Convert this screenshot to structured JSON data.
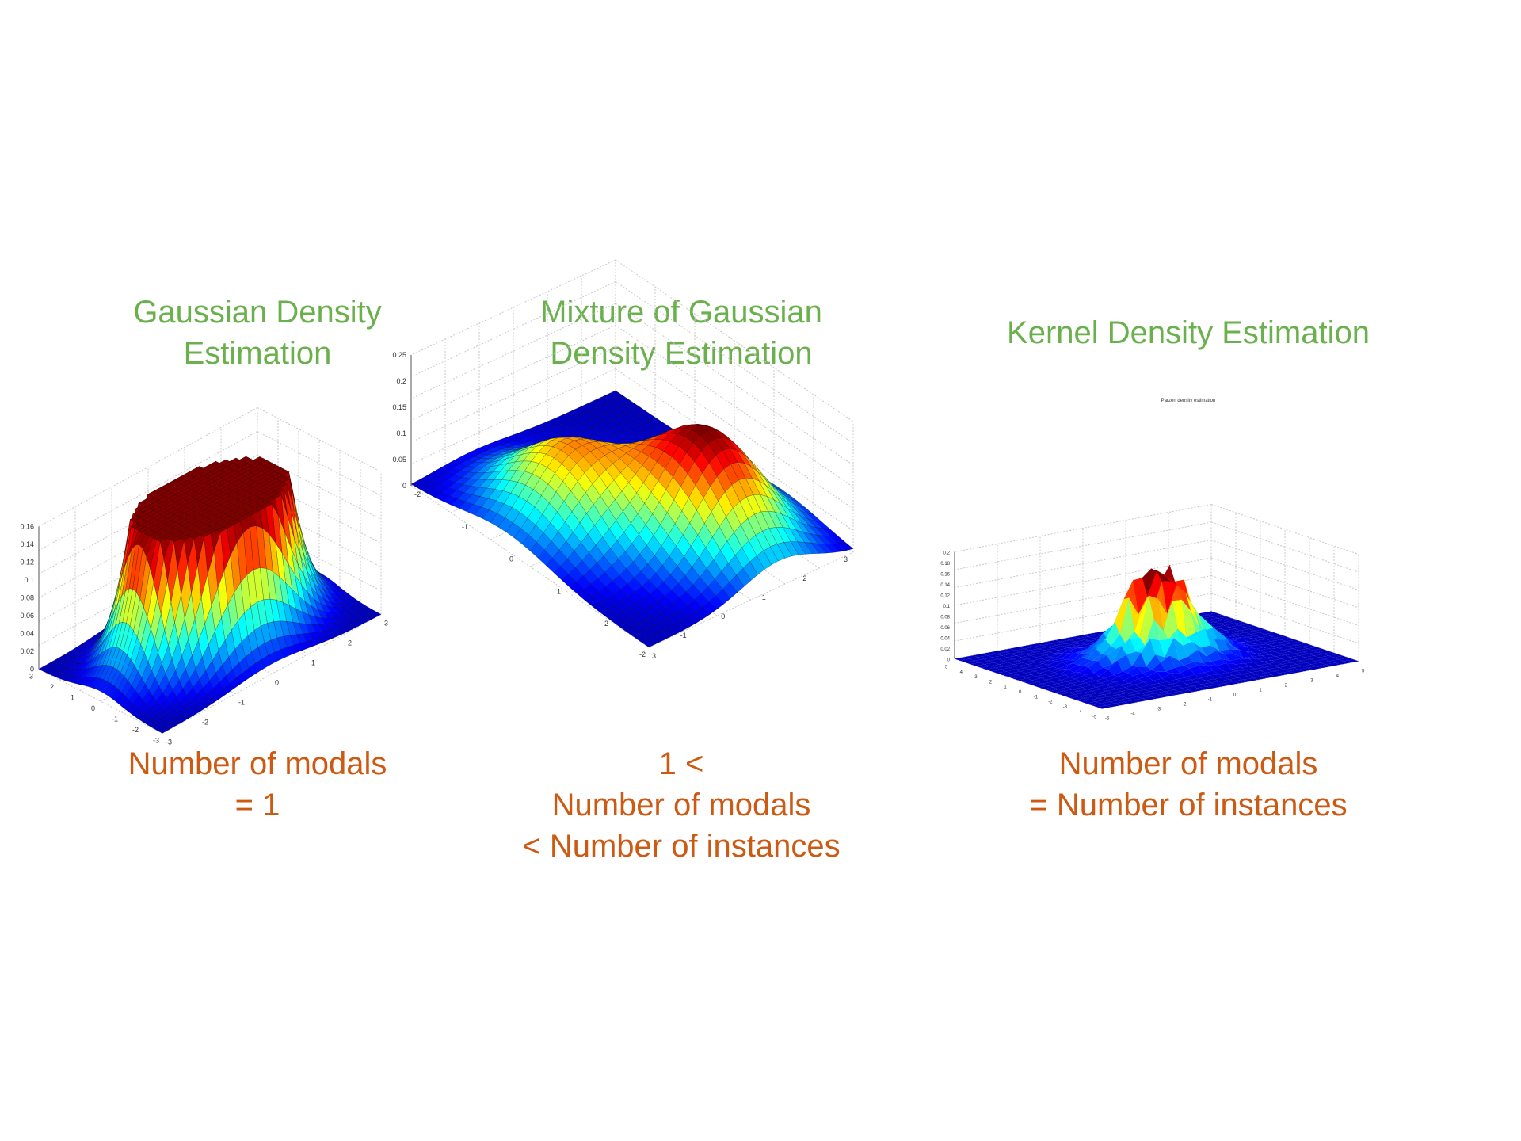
{
  "colors": {
    "title": "#6ab04c",
    "caption": "#cc5a12",
    "grid": "#c8c8c8",
    "axis": "#555555"
  },
  "chart_data": [
    {
      "type": "surface",
      "surface_model": "single-gaussian",
      "title_lines": [
        "Gaussian Density",
        "Estimation"
      ],
      "caption_lines": [
        "Number of modals",
        "= 1"
      ],
      "zticks": [
        "0",
        "0.02",
        "0.04",
        "0.06",
        "0.08",
        "0.1",
        "0.12",
        "0.14",
        "0.16"
      ],
      "zlim": [
        0,
        0.16
      ],
      "xlim": [
        -3,
        3
      ],
      "ylim": [
        -3,
        3
      ],
      "xticks": [
        "-3",
        "-2",
        "-1",
        "0",
        "1",
        "2",
        "3"
      ],
      "yticks": [
        "3",
        "2",
        "1",
        "0",
        "-1",
        "-2",
        "-3"
      ],
      "components": [
        {
          "mx": 0,
          "my": 0,
          "sigma": 1,
          "weight": 1
        }
      ],
      "peak_z": 0.16
    },
    {
      "type": "surface",
      "surface_model": "mixture-of-gaussians",
      "title_lines": [
        "Mixture of Gaussian",
        "Density Estimation"
      ],
      "caption_lines": [
        "1 <",
        "Number of modals",
        "< Number of instances"
      ],
      "zticks": [
        "0",
        "0.05",
        "0.1",
        "0.15",
        "0.2",
        "0.25"
      ],
      "zlim": [
        0,
        0.25
      ],
      "xlim": [
        -2,
        3
      ],
      "ylim": [
        -2,
        3
      ],
      "xticks": [
        "3",
        "2",
        "1",
        "0",
        "-1",
        "-2"
      ],
      "yticks": [
        "3",
        "2",
        "1",
        "0",
        "-1",
        "-2"
      ],
      "components": [
        {
          "mx": -0.5,
          "my": 1.2,
          "sigma": 0.9,
          "weight": 0.2
        },
        {
          "mx": 1.0,
          "my": -0.5,
          "sigma": 0.9,
          "weight": 0.14
        }
      ],
      "peak_z": 0.2
    },
    {
      "type": "surface",
      "surface_model": "kernel-density",
      "title_lines": [
        "Kernel Density Estimation"
      ],
      "caption_lines": [
        "Number of modals",
        "= Number of instances"
      ],
      "plot_title": "Parzen density estimation",
      "zticks": [
        "0",
        "0.02",
        "0.04",
        "0.06",
        "0.08",
        "0.1",
        "0.12",
        "0.14",
        "0.16",
        "0.18",
        "0.2"
      ],
      "zlim": [
        0,
        0.2
      ],
      "xlim": [
        -5,
        5
      ],
      "ylim": [
        -5,
        5
      ],
      "xticks": [
        "-5",
        "-4",
        "-3",
        "-2",
        "-1",
        "0",
        "1",
        "2",
        "3",
        "4",
        "5"
      ],
      "yticks": [
        "5",
        "4",
        "3",
        "2",
        "1",
        "0",
        "-1",
        "-2",
        "-3",
        "-4",
        "-5"
      ],
      "peak_z": 0.2
    }
  ]
}
